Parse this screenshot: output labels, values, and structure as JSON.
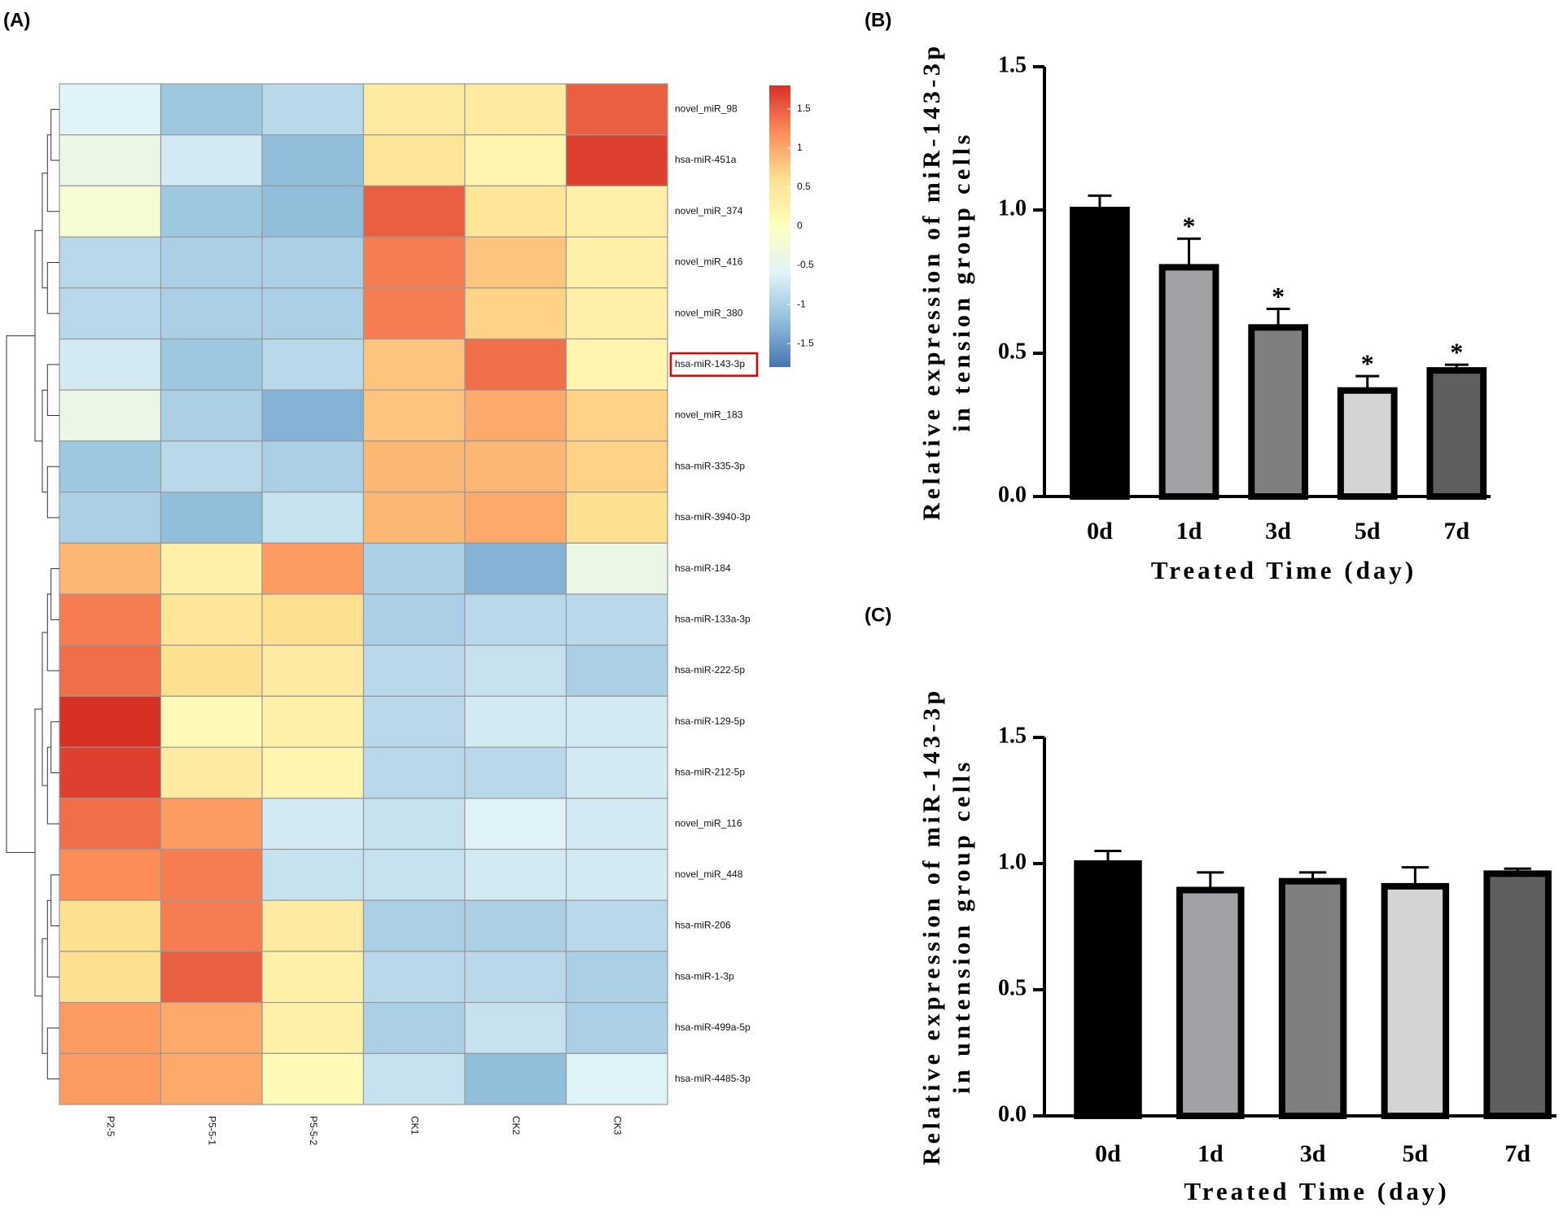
{
  "chart_data": [
    {
      "type": "heatmap",
      "panel_label": "(A)",
      "rows": [
        "novel_miR_98",
        "hsa-miR-451a",
        "novel_miR_374",
        "novel_miR_416",
        "novel_miR_380",
        "hsa-miR-143-3p",
        "novel_miR_183",
        "hsa-miR-335-3p",
        "hsa-miR-3940-3p",
        "hsa-miR-184",
        "hsa-miR-133a-3p",
        "hsa-miR-222-5p",
        "hsa-miR-129-5p",
        "hsa-miR-212-5p",
        "novel_miR_116",
        "novel_miR_448",
        "hsa-miR-206",
        "hsa-miR-1-3p",
        "hsa-miR-499a-5p",
        "hsa-miR-4485-3p"
      ],
      "columns": [
        "P2-5",
        "P5-5-1",
        "P5-5-2",
        "CK1",
        "CK2",
        "CK3"
      ],
      "values": [
        [
          -0.6,
          -1.1,
          -0.9,
          0.4,
          0.4,
          1.5
        ],
        [
          -0.4,
          -0.7,
          -1.2,
          0.5,
          0.2,
          1.7
        ],
        [
          -0.2,
          -1.1,
          -1.2,
          1.5,
          0.5,
          0.3
        ],
        [
          -0.9,
          -1.0,
          -1.0,
          1.3,
          0.8,
          0.3
        ],
        [
          -0.9,
          -1.0,
          -1.0,
          1.3,
          0.7,
          0.3
        ],
        [
          -0.7,
          -1.1,
          -0.9,
          0.8,
          1.4,
          0.2
        ],
        [
          -0.4,
          -1.0,
          -1.3,
          0.8,
          1.0,
          0.7
        ],
        [
          -1.1,
          -0.9,
          -1.0,
          0.9,
          0.9,
          0.7
        ],
        [
          -1.0,
          -1.2,
          -0.8,
          0.9,
          1.0,
          0.6
        ],
        [
          0.9,
          0.3,
          1.1,
          -1.0,
          -1.3,
          -0.4
        ],
        [
          1.3,
          0.5,
          0.6,
          -1.0,
          -0.9,
          -0.9
        ],
        [
          1.4,
          0.6,
          0.4,
          -0.9,
          -0.8,
          -1.0
        ],
        [
          1.8,
          0.1,
          0.3,
          -0.9,
          -0.7,
          -0.7
        ],
        [
          1.7,
          0.4,
          0.2,
          -0.9,
          -0.9,
          -0.7
        ],
        [
          1.4,
          1.1,
          -0.7,
          -0.8,
          -0.6,
          -0.7
        ],
        [
          1.2,
          1.3,
          -0.8,
          -0.8,
          -0.7,
          -0.7
        ],
        [
          0.6,
          1.3,
          0.4,
          -1.0,
          -1.0,
          -0.9
        ],
        [
          0.6,
          1.5,
          0.3,
          -0.9,
          -0.9,
          -1.0
        ],
        [
          1.1,
          1.0,
          0.3,
          -1.0,
          -0.8,
          -1.0
        ],
        [
          1.1,
          1.0,
          0.1,
          -0.8,
          -1.2,
          -0.6
        ]
      ],
      "clim": [
        -1.8,
        1.8
      ],
      "cticks": [
        1.5,
        1,
        0.5,
        0,
        -0.5,
        -1,
        -1.5
      ],
      "colorscale": [
        "#4575b4",
        "#91bfdb",
        "#e0f3f8",
        "#ffffbf",
        "#fee090",
        "#fc8d59",
        "#d73027"
      ],
      "highlight_rows": [
        5
      ]
    },
    {
      "type": "bar",
      "panel_label": "(B)",
      "ylabel": [
        "Relative expression of miR-143-3p",
        "in tension group cells"
      ],
      "xlabel": "Treated Time (day)",
      "categories": [
        "0d",
        "1d",
        "3d",
        "5d",
        "7d"
      ],
      "values": [
        1.0,
        0.8,
        0.59,
        0.37,
        0.44
      ],
      "errors": [
        0.05,
        0.1,
        0.065,
        0.05,
        0.02
      ],
      "annotations": [
        null,
        "*",
        "*",
        "*",
        "*"
      ],
      "colors": [
        "#000000",
        "#a2a2a6",
        "#7f7f7f",
        "#d4d4d4",
        "#5f5f5f"
      ],
      "ylim": [
        0,
        1.5
      ],
      "yticks": [
        {
          "value": 0,
          "label": "0.0"
        },
        {
          "value": 0.5,
          "label": "0.5"
        },
        {
          "value": 1,
          "label": "1.0"
        },
        {
          "value": 1.5,
          "label": "1.5"
        }
      ]
    },
    {
      "type": "bar",
      "panel_label": "(C)",
      "ylabel": [
        "Relative expression of miR-143-3p",
        "in untension group cells"
      ],
      "xlabel": "Treated Time (day)",
      "categories": [
        "0d",
        "1d",
        "3d",
        "5d",
        "7d"
      ],
      "values": [
        1.0,
        0.895,
        0.93,
        0.91,
        0.96
      ],
      "errors": [
        0.05,
        0.07,
        0.035,
        0.075,
        0.02
      ],
      "colors": [
        "#000000",
        "#a2a2a6",
        "#7f7f7f",
        "#d4d4d4",
        "#5f5f5f"
      ],
      "ylim": [
        0,
        1.5
      ],
      "yticks": [
        {
          "value": 0,
          "label": "0.0"
        },
        {
          "value": 0.5,
          "label": "0.5"
        },
        {
          "value": 1,
          "label": "1.0"
        },
        {
          "value": 1.5,
          "label": "1.5"
        }
      ]
    }
  ]
}
